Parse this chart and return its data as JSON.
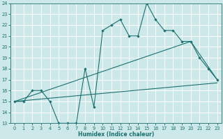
{
  "xlabel": "Humidex (Indice chaleur)",
  "bg_color": "#cce8e8",
  "grid_color": "#ffffff",
  "line_color": "#1a7070",
  "xlim": [
    -0.5,
    23.5
  ],
  "ylim": [
    13,
    24
  ],
  "xticks": [
    0,
    1,
    2,
    3,
    4,
    5,
    6,
    7,
    8,
    9,
    10,
    11,
    12,
    13,
    14,
    15,
    16,
    17,
    18,
    19,
    20,
    21,
    22,
    23
  ],
  "yticks": [
    13,
    14,
    15,
    16,
    17,
    18,
    19,
    20,
    21,
    22,
    23,
    24
  ],
  "line1_x": [
    0,
    1,
    2,
    3,
    4,
    5,
    6,
    7,
    8,
    9,
    10,
    11,
    12,
    13,
    14,
    15,
    16,
    17,
    18,
    19,
    20,
    21,
    22,
    23
  ],
  "line1_y": [
    15,
    15,
    16,
    16,
    15,
    13,
    13,
    13,
    18,
    14.5,
    21.5,
    22,
    22.5,
    21,
    21,
    24,
    22.5,
    21.5,
    21.5,
    20.5,
    20.5,
    19,
    18,
    17
  ],
  "line2_x": [
    0,
    23
  ],
  "line2_y": [
    15,
    16.7
  ],
  "line3_x": [
    0,
    20,
    23
  ],
  "line3_y": [
    15,
    20.5,
    17
  ],
  "xlabel_fontsize": 5.5,
  "tick_fontsize": 4.8
}
